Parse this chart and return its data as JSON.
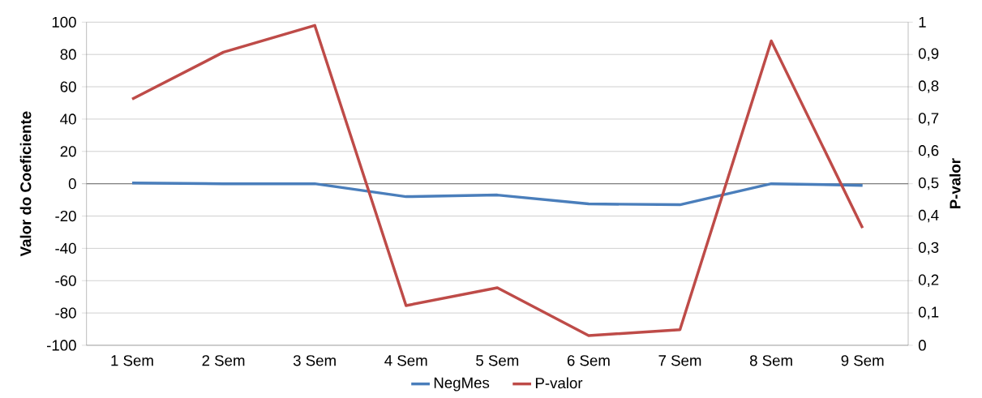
{
  "chart_data": {
    "type": "line",
    "categories": [
      "1 Sem",
      "2 Sem",
      "3 Sem",
      "4 Sem",
      "5 Sem",
      "6 Sem",
      "7 Sem",
      "8 Sem",
      "9 Sem"
    ],
    "series": [
      {
        "name": "NegMes",
        "color": "#4a7ebb",
        "values": [
          0.5,
          0,
          0,
          -8,
          -7,
          -12.5,
          -13,
          0,
          -1
        ]
      },
      {
        "name": "P-valor",
        "color": "#be4b48",
        "axis": "y2",
        "values": [
          0.762,
          0.907,
          0.99,
          0.123,
          0.178,
          0.03,
          0.048,
          0.942,
          0.363
        ]
      }
    ],
    "ylabel": "Valor do Coeficiente",
    "y2label": "P-valor",
    "ylim": [
      -100,
      100
    ],
    "yticks": [
      -100,
      -80,
      -60,
      -40,
      -20,
      0,
      20,
      40,
      60,
      80,
      100
    ],
    "y2lim": [
      0,
      1
    ],
    "y2ticks": [
      0,
      {
        "value": 0.1,
        "label": "0,1"
      },
      {
        "value": 0.2,
        "label": "0,2"
      },
      {
        "value": 0.3,
        "label": "0,3"
      },
      {
        "value": 0.4,
        "label": "0,4"
      },
      {
        "value": 0.5,
        "label": "0,5"
      },
      {
        "value": 0.6,
        "label": "0,6"
      },
      {
        "value": 0.7,
        "label": "0,7"
      },
      {
        "value": 0.8,
        "label": "0,8"
      },
      {
        "value": 0.9,
        "label": "0,9"
      },
      1
    ],
    "grid": "y",
    "legend": "bottom"
  }
}
